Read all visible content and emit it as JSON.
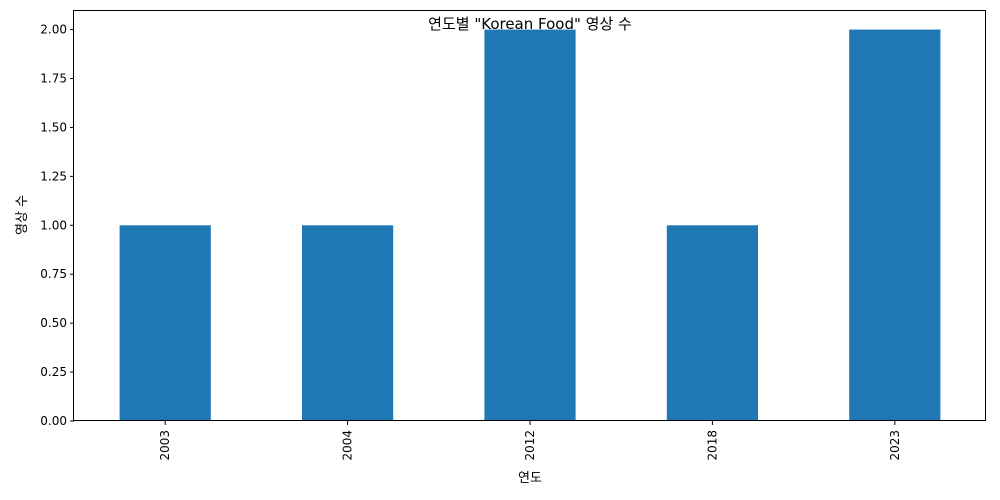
{
  "chart_data": {
    "type": "bar",
    "title": "연도별 \"Korean Food\" 영상 수",
    "xlabel": "연도",
    "ylabel": "영상 수",
    "categories": [
      "2003",
      "2004",
      "2012",
      "2018",
      "2023"
    ],
    "values": [
      1,
      1,
      2,
      1,
      2
    ],
    "ylim": [
      0,
      2.1
    ],
    "yticks": [
      "0.00",
      "0.25",
      "0.50",
      "0.75",
      "1.00",
      "1.25",
      "1.50",
      "1.75",
      "2.00"
    ],
    "bar_color": "#1f77b4",
    "grid": false,
    "legend": "none"
  }
}
